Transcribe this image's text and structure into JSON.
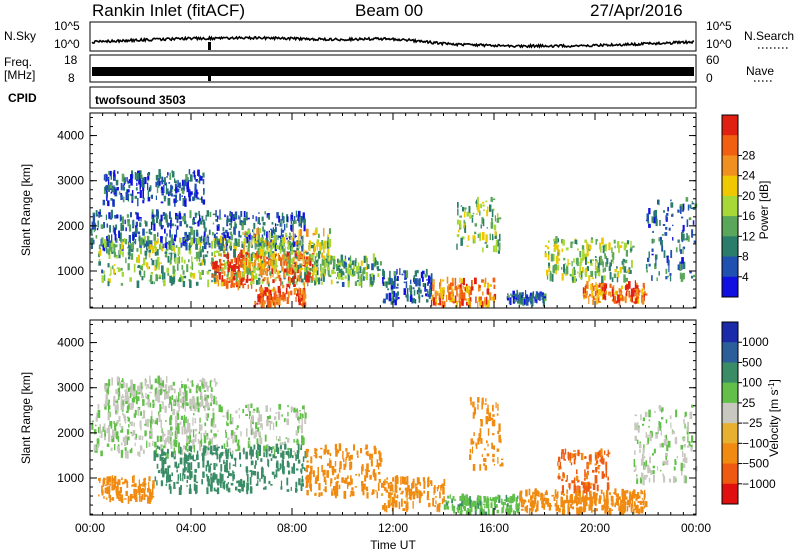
{
  "header": {
    "station": "Rankin Inlet (fitACF)",
    "beam": "Beam 00",
    "date": "27/Apr/2016"
  },
  "top_panels": {
    "nsky": {
      "label_left": "N.Sky",
      "label_right": "N.Search",
      "ticks_left": [
        "10^5",
        "10^0"
      ],
      "ticks_right": [
        "10^5",
        "10^0"
      ]
    },
    "freq": {
      "label_left_1": "Freq.",
      "label_left_2": "[MHz]",
      "label_right": "Nave",
      "ticks_left": [
        "18",
        "8"
      ],
      "ticks_right": [
        "60",
        "0"
      ]
    },
    "cpid": {
      "label": "CPID",
      "value": "twofsound 3503"
    }
  },
  "colors": {
    "power_scale": [
      "#1010e0",
      "#2050b0",
      "#2a7d6a",
      "#5aa65a",
      "#a8d838",
      "#f0c800",
      "#f09020",
      "#f06010",
      "#e02010"
    ],
    "velocity_scale": [
      "#1a2aa8",
      "#2c5e9a",
      "#3a8c66",
      "#62c04a",
      "#c8c8c0",
      "#e8b030",
      "#f08a10",
      "#ee5a10",
      "#e01010"
    ]
  },
  "chart_data": [
    {
      "type": "heatmap",
      "name": "power",
      "xlabel": "Time UT",
      "ylabel": "Slant Range [km]",
      "x_ticks": [
        "00:00",
        "04:00",
        "08:00",
        "12:00",
        "16:00",
        "20:00",
        "00:00"
      ],
      "xlim": [
        0,
        24
      ],
      "y_ticks": [
        1000,
        2000,
        3000,
        4000
      ],
      "ylim": [
        180,
        4500
      ],
      "colorbar": {
        "label": "Power [dB]",
        "ticks": [
          4,
          8,
          12,
          16,
          20,
          24,
          28
        ],
        "range": [
          0,
          32
        ]
      },
      "regions": [
        {
          "t0": 0.0,
          "t1": 8.5,
          "r0": 1500,
          "r1": 2300,
          "level": 7
        },
        {
          "t0": 0.3,
          "t1": 9.5,
          "r0": 700,
          "r1": 1700,
          "level": 13
        },
        {
          "t0": 4.8,
          "t1": 8.8,
          "r0": 650,
          "r1": 1400,
          "level": 28
        },
        {
          "t0": 6.0,
          "t1": 9.5,
          "r0": 900,
          "r1": 1900,
          "level": 18
        },
        {
          "t0": 9.5,
          "t1": 11.5,
          "r0": 700,
          "r1": 1300,
          "level": 12
        },
        {
          "t0": 11.5,
          "t1": 13.5,
          "r0": 300,
          "r1": 1000,
          "level": 6
        },
        {
          "t0": 13.5,
          "t1": 16.0,
          "r0": 250,
          "r1": 800,
          "level": 24
        },
        {
          "t0": 14.5,
          "t1": 16.2,
          "r0": 1400,
          "r1": 2600,
          "level": 14
        },
        {
          "t0": 16.5,
          "t1": 18.0,
          "r0": 300,
          "r1": 500,
          "level": 6
        },
        {
          "t0": 18.0,
          "t1": 21.5,
          "r0": 800,
          "r1": 1700,
          "level": 14
        },
        {
          "t0": 19.5,
          "t1": 22.0,
          "r0": 300,
          "r1": 700,
          "level": 26
        },
        {
          "t0": 22.0,
          "t1": 24.0,
          "r0": 800,
          "r1": 2600,
          "level": 8
        },
        {
          "t0": 6.5,
          "t1": 8.5,
          "r0": 250,
          "r1": 600,
          "level": 27
        },
        {
          "t0": 0.5,
          "t1": 4.5,
          "r0": 2500,
          "r1": 3200,
          "level": 6
        }
      ]
    },
    {
      "type": "heatmap",
      "name": "velocity",
      "xlabel": "Time UT",
      "ylabel": "Slant Range [km]",
      "x_ticks": [
        "00:00",
        "04:00",
        "08:00",
        "12:00",
        "16:00",
        "20:00",
        "00:00"
      ],
      "xlim": [
        0,
        24
      ],
      "y_ticks": [
        1000,
        2000,
        3000,
        4000
      ],
      "ylim": [
        180,
        4500
      ],
      "colorbar": {
        "label": "Velocity [m s^-1]",
        "ticks": [
          "1000",
          "500",
          "100",
          "25",
          "−25",
          "−100",
          "−500",
          "−1000"
        ],
        "range": [
          -1250,
          1250
        ]
      },
      "regions": [
        {
          "t0": 0.0,
          "t1": 8.5,
          "r0": 1500,
          "r1": 2600,
          "level": 25
        },
        {
          "t0": 0.3,
          "t1": 2.5,
          "r0": 500,
          "r1": 1000,
          "level": -200
        },
        {
          "t0": 2.5,
          "t1": 8.5,
          "r0": 700,
          "r1": 1700,
          "level": 300
        },
        {
          "t0": 8.5,
          "t1": 11.5,
          "r0": 600,
          "r1": 1700,
          "level": -300
        },
        {
          "t0": 11.5,
          "t1": 14.0,
          "r0": 300,
          "r1": 1000,
          "level": -150
        },
        {
          "t0": 14.0,
          "t1": 17.0,
          "r0": 200,
          "r1": 600,
          "level": 80
        },
        {
          "t0": 15.0,
          "t1": 16.3,
          "r0": 1200,
          "r1": 2800,
          "level": -300
        },
        {
          "t0": 17.0,
          "t1": 22.0,
          "r0": 250,
          "r1": 700,
          "level": -200
        },
        {
          "t0": 18.5,
          "t1": 20.5,
          "r0": 700,
          "r1": 1600,
          "level": -600
        },
        {
          "t0": 21.5,
          "t1": 24.0,
          "r0": 900,
          "r1": 2600,
          "level": 20
        },
        {
          "t0": 0.5,
          "t1": 5.0,
          "r0": 2600,
          "r1": 3200,
          "level": 20
        }
      ]
    }
  ]
}
